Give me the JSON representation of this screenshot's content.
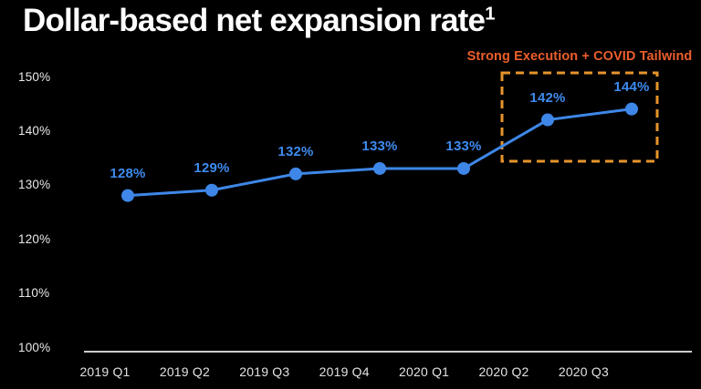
{
  "page": {
    "background": "#000000",
    "title": "Dollar-based net expansion rate",
    "title_footnote_marker": "1",
    "title_color": "#ffffff"
  },
  "annotation": {
    "label": "Strong Execution + COVID Tailwind",
    "text_color": "#ec5e2c",
    "box_color": "#e6952b",
    "covers_categories": [
      "2020 Q2",
      "2020 Q3"
    ]
  },
  "chart_data": {
    "type": "line",
    "title": "Dollar-based net expansion rate",
    "categories": [
      "2019 Q1",
      "2019 Q2",
      "2019 Q3",
      "2019 Q4",
      "2020 Q1",
      "2020 Q2",
      "2020 Q3"
    ],
    "series": [
      {
        "name": "Dollar-based net expansion rate",
        "values": [
          128,
          129,
          132,
          133,
          133,
          142,
          144
        ]
      }
    ],
    "point_labels": [
      "128%",
      "129%",
      "132%",
      "133%",
      "133%",
      "142%",
      "144%"
    ],
    "y_ticks": [
      {
        "value": 100,
        "label": "100%"
      },
      {
        "value": 110,
        "label": "110%"
      },
      {
        "value": 120,
        "label": "120%"
      },
      {
        "value": 130,
        "label": "130%"
      },
      {
        "value": 140,
        "label": "140%"
      },
      {
        "value": 150,
        "label": "150%"
      }
    ],
    "ylim": [
      100,
      150
    ],
    "xlabel": "",
    "ylabel": "",
    "grid": false,
    "legend": "none",
    "line_color": "#3e87e8",
    "point_color": "#3e87e8",
    "point_label_color": "#3e8bef",
    "axis_line_color": "#cccccc"
  }
}
